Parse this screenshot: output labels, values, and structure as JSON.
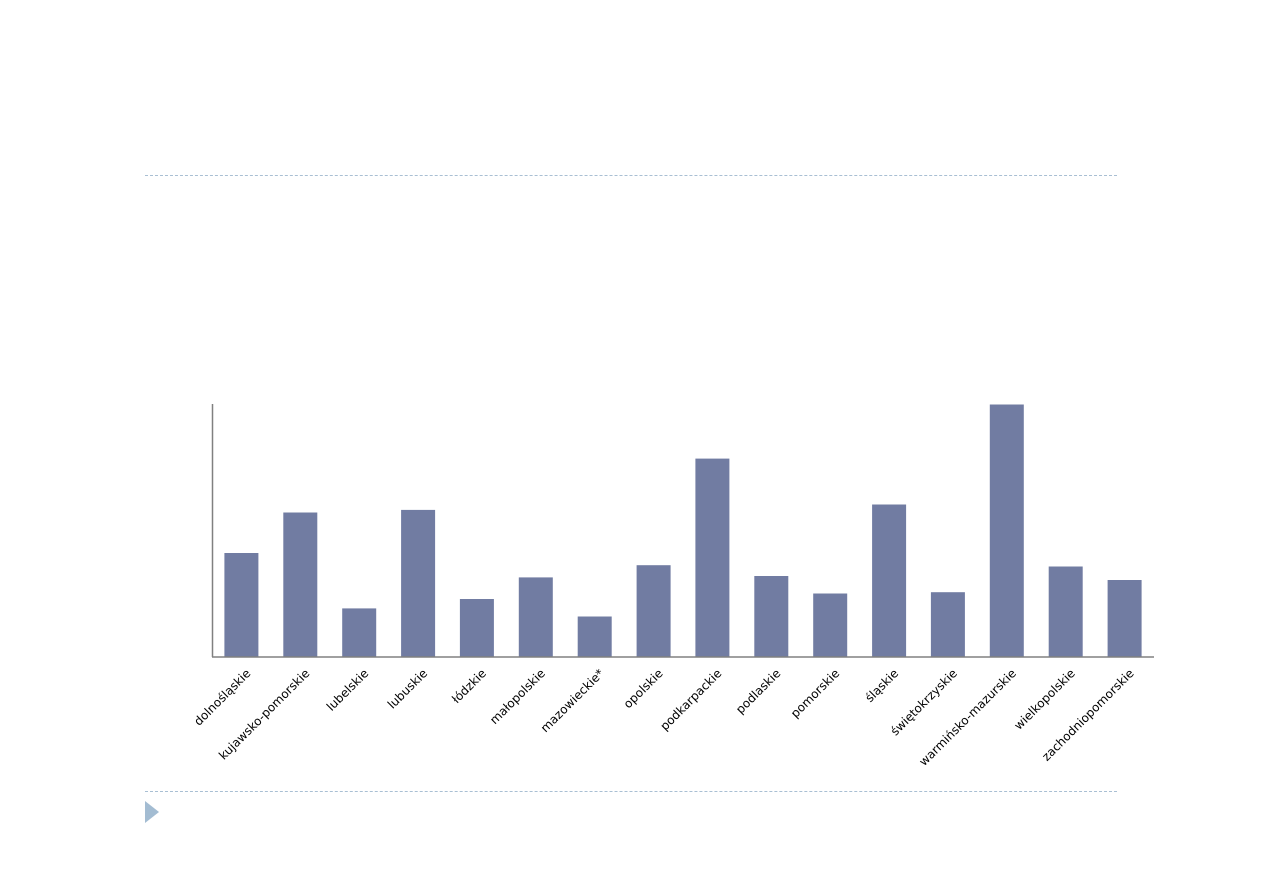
{
  "chart_data": {
    "type": "bar",
    "categories": [
      "dolnośląskie",
      "kujawsko-pomorskie",
      "lubelskie",
      "lubuskie",
      "łódzkie",
      "małopolskie",
      "mazowieckie*",
      "opolskie",
      "podkarpackie",
      "podlaskie",
      "pomorskie",
      "śląskie",
      "świętokrzyskie",
      "warmińsko-mazurskie",
      "wielkopolskie",
      "zachodniopomorskie"
    ],
    "values": [
      38.5,
      53.5,
      18,
      54.5,
      21.5,
      29.5,
      15,
      34,
      73.5,
      30,
      23.5,
      56.5,
      24,
      93.5,
      33.5,
      28.5
    ],
    "ylim": [
      0,
      100
    ],
    "grid": false,
    "legend": "none",
    "colors": {
      "bar": "#717ca2",
      "axis": "#808080",
      "divider": "#a9bfd3",
      "marker": "#a3bcd2"
    }
  },
  "decorations": {
    "marker_icon": "triangle-right-icon"
  }
}
